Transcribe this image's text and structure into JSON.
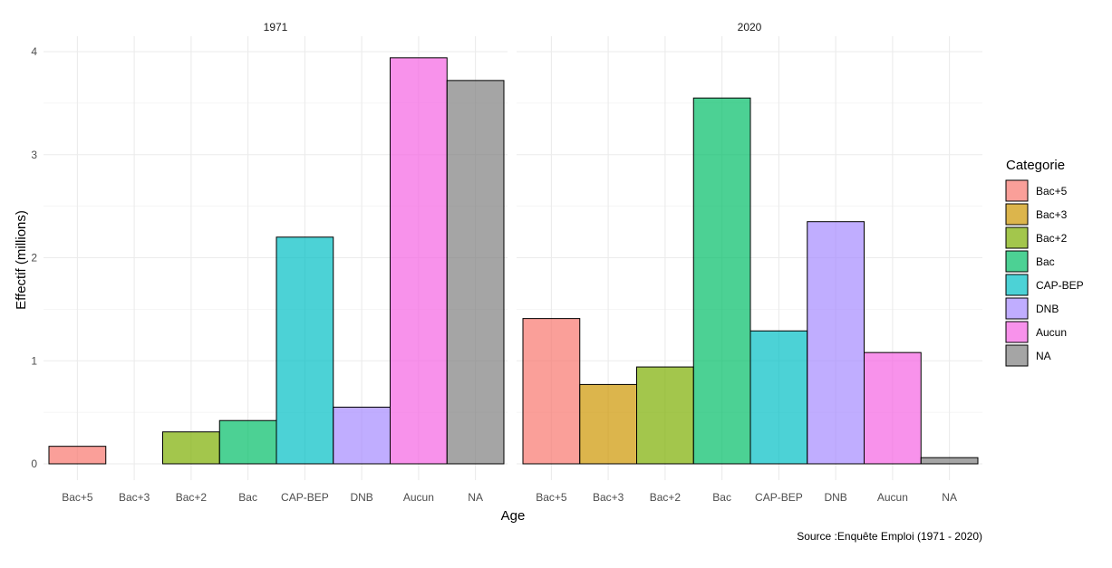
{
  "chart_data": {
    "type": "bar",
    "facets": [
      "1971",
      "2020"
    ],
    "categories": [
      "Bac+5",
      "Bac+3",
      "Bac+2",
      "Bac",
      "CAP-BEP",
      "DNB",
      "Aucun",
      "NA"
    ],
    "series": [
      {
        "name": "1971",
        "values": [
          0.17,
          0.0,
          0.31,
          0.42,
          2.2,
          0.55,
          3.94,
          3.72
        ]
      },
      {
        "name": "2020",
        "values": [
          1.41,
          0.77,
          0.94,
          3.55,
          1.29,
          2.35,
          1.08,
          0.06
        ]
      }
    ],
    "xlabel": "Age",
    "ylabel": "Effectif (millions)",
    "ylim": [
      0,
      4.2
    ],
    "yticks": [
      0,
      1,
      2,
      3,
      4
    ],
    "grid": true,
    "legend": {
      "title": "Categorie",
      "position": "right",
      "items": [
        "Bac+5",
        "Bac+3",
        "Bac+2",
        "Bac",
        "CAP-BEP",
        "DNB",
        "Aucun",
        "NA"
      ]
    },
    "caption": "Source :Enquête Emploi (1971 - 2020)",
    "colors": {
      "Bac+5": "#F8766D",
      "Bac+3": "#CD9600",
      "Bac+2": "#7CAE00",
      "Bac": "#00BE67",
      "CAP-BEP": "#00BFC4",
      "DNB": "#A58AFF",
      "Aucun": "#F564E3",
      "NA": "#7F7F7F"
    }
  }
}
